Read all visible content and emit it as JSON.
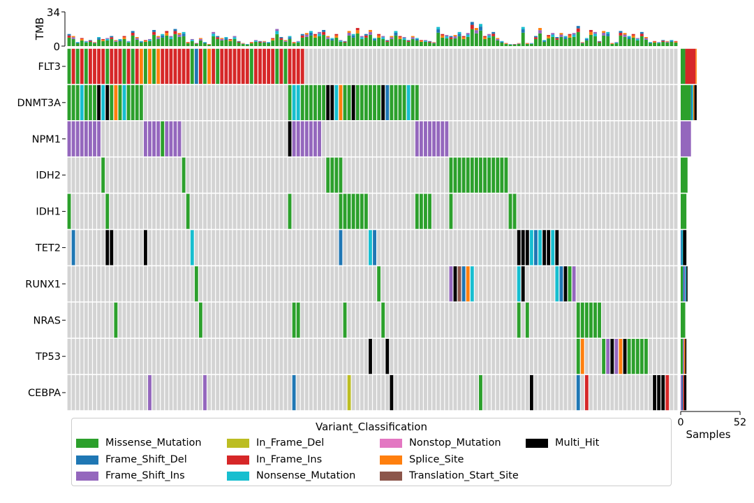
{
  "chart_data": {
    "type": "heatmap",
    "title": "",
    "genes": [
      "FLT3",
      "DNMT3A",
      "NPM1",
      "IDH2",
      "IDH1",
      "TET2",
      "RUNX1",
      "NRAS",
      "TP53",
      "CEBPA"
    ],
    "n_samples": 144,
    "tmb_axis": {
      "label": "TMB",
      "ticks": [
        "0",
        "34"
      ],
      "max": 34
    },
    "samples_axis": {
      "label": "Samples",
      "ticks": [
        "0",
        "52"
      ],
      "max": 52
    },
    "tmb": [
      12,
      10,
      4,
      8,
      5,
      6,
      4,
      9,
      7,
      8,
      10,
      6,
      7,
      10,
      5,
      15,
      9,
      5,
      6,
      7,
      16,
      10,
      12,
      15,
      10,
      17,
      13,
      14,
      4,
      7,
      3,
      8,
      4,
      2,
      14,
      10,
      8,
      9,
      7,
      10,
      5,
      3,
      2,
      4,
      6,
      5,
      5,
      4,
      8,
      17,
      9,
      6,
      10,
      4,
      5,
      12,
      13,
      15,
      12,
      14,
      16,
      10,
      8,
      12,
      6,
      5,
      15,
      12,
      18,
      10,
      12,
      16,
      8,
      12,
      10,
      6,
      10,
      15,
      10,
      9,
      6,
      10,
      8,
      6,
      6,
      5,
      4,
      19,
      12,
      11,
      10,
      11,
      14,
      10,
      13,
      24,
      18,
      22,
      10,
      12,
      14,
      8,
      5,
      3,
      2,
      2,
      3,
      19,
      3,
      3,
      10,
      18,
      6,
      11,
      13,
      9,
      13,
      10,
      12,
      13,
      20,
      4,
      8,
      16,
      14,
      5,
      15,
      14,
      3,
      4,
      15,
      13,
      10,
      12,
      8,
      14,
      9,
      4,
      5,
      4,
      6,
      5,
      6,
      5
    ],
    "tmb_colored": [
      [
        0,
        12
      ],
      [
        2,
        9
      ],
      [
        6,
        8
      ],
      [
        10,
        10
      ],
      [
        14,
        11
      ],
      [
        17,
        12
      ],
      [
        20,
        13
      ],
      [
        30,
        14
      ],
      [
        35,
        8
      ],
      [
        40,
        6
      ],
      [
        42,
        5
      ],
      [
        48,
        12
      ],
      [
        52,
        10
      ],
      [
        55,
        16
      ],
      [
        58,
        12
      ],
      [
        62,
        14
      ],
      [
        68,
        18
      ],
      [
        70,
        12
      ],
      [
        85,
        10
      ],
      [
        87,
        18
      ],
      [
        95,
        32
      ],
      [
        100,
        12
      ],
      [
        113,
        18
      ],
      [
        118,
        12
      ],
      [
        120,
        20
      ],
      [
        125,
        16
      ],
      [
        130,
        15
      ],
      [
        140,
        8
      ]
    ],
    "alterations_legend": [
      "Missense_Mutation",
      "Frame_Shift_Del",
      "Frame_Shift_Ins",
      "In_Frame_Del",
      "In_Frame_Ins",
      "Nonsense_Mutation",
      "Nonstop_Mutation",
      "Splice_Site",
      "Translation_Start_Site",
      "Multi_Hit"
    ],
    "colors": {
      "Missense_Mutation": "#2ca02c",
      "Frame_Shift_Del": "#1f77b4",
      "Frame_Shift_Ins": "#9467bd",
      "In_Frame_Del": "#bcbd22",
      "In_Frame_Ins": "#d62728",
      "Nonsense_Mutation": "#17becf",
      "Nonstop_Mutation": "#e377c2",
      "Splice_Site": "#ff7f0e",
      "Translation_Start_Site": "#8c564b",
      "Multi_Hit": "#000000",
      "none": "#d3d3d3"
    },
    "matrix": {
      "FLT3": [
        [
          "M",
          0,
          1
        ],
        [
          "I",
          1,
          1
        ],
        [
          "M",
          2,
          1
        ],
        [
          "I",
          3,
          1
        ],
        [
          "M",
          4,
          1
        ],
        [
          "I",
          5,
          4
        ],
        [
          "M",
          9,
          1
        ],
        [
          "I",
          10,
          3
        ],
        [
          "M",
          13,
          1
        ],
        [
          "I",
          14,
          1
        ],
        [
          "M",
          15,
          1
        ],
        [
          "I",
          16,
          1
        ],
        [
          "S",
          17,
          1
        ],
        [
          "M",
          18,
          1
        ],
        [
          "S",
          19,
          1
        ],
        [
          "M",
          20,
          1
        ],
        [
          "S",
          21,
          1
        ],
        [
          "I",
          22,
          7
        ],
        [
          "M",
          29,
          1
        ],
        [
          "D",
          30,
          1
        ],
        [
          "I",
          31,
          1
        ],
        [
          "M",
          32,
          1
        ],
        [
          "S",
          33,
          1
        ],
        [
          "I",
          34,
          1
        ],
        [
          "M",
          35,
          1
        ],
        [
          "I",
          36,
          7
        ],
        [
          "M",
          43,
          1
        ],
        [
          "I",
          44,
          5
        ],
        [
          "M",
          49,
          1
        ],
        [
          "I",
          50,
          1
        ],
        [
          "M",
          51,
          1
        ],
        [
          "I",
          52,
          4
        ]
      ],
      "DNMT3A": [
        [
          "M",
          0,
          3
        ],
        [
          "N",
          3,
          1
        ],
        [
          "M",
          4,
          3
        ],
        [
          "H",
          7,
          1
        ],
        [
          "N",
          8,
          1
        ],
        [
          "H",
          9,
          1
        ],
        [
          "M",
          10,
          1
        ],
        [
          "S",
          11,
          1
        ],
        [
          "M",
          12,
          1
        ],
        [
          "N",
          13,
          1
        ],
        [
          "M",
          14,
          4
        ],
        [
          "M",
          52,
          1
        ],
        [
          "N",
          53,
          1
        ],
        [
          "N",
          54,
          1
        ],
        [
          "M",
          55,
          6
        ],
        [
          "H",
          61,
          2
        ],
        [
          "N",
          63,
          1
        ],
        [
          "S",
          64,
          1
        ],
        [
          "M",
          65,
          2
        ],
        [
          "H",
          67,
          1
        ],
        [
          "M",
          68,
          6
        ],
        [
          "H",
          74,
          1
        ],
        [
          "D",
          75,
          1
        ],
        [
          "M",
          76,
          4
        ],
        [
          "N",
          80,
          1
        ],
        [
          "M",
          81,
          2
        ]
      ],
      "NPM1": [
        [
          "F",
          0,
          8
        ],
        [
          "F",
          18,
          4
        ],
        [
          "M",
          22,
          1
        ],
        [
          "F",
          23,
          4
        ],
        [
          "H",
          52,
          1
        ],
        [
          "F",
          53,
          7
        ],
        [
          "F",
          82,
          8
        ]
      ],
      "IDH2": [
        [
          "M",
          8,
          1
        ],
        [
          "M",
          27,
          1
        ],
        [
          "M",
          61,
          4
        ],
        [
          "M",
          90,
          14
        ]
      ],
      "IDH1": [
        [
          "M",
          0,
          1
        ],
        [
          "M",
          9,
          1
        ],
        [
          "M",
          28,
          1
        ],
        [
          "M",
          52,
          1
        ],
        [
          "M",
          64,
          7
        ],
        [
          "M",
          82,
          4
        ],
        [
          "M",
          90,
          1
        ],
        [
          "M",
          104,
          2
        ]
      ],
      "TET2": [
        [
          "D",
          1,
          1
        ],
        [
          "H",
          9,
          2
        ],
        [
          "H",
          18,
          1
        ],
        [
          "N",
          29,
          1
        ],
        [
          "D",
          64,
          1
        ],
        [
          "N",
          71,
          1
        ],
        [
          "D",
          72,
          1
        ],
        [
          "H",
          106,
          3
        ],
        [
          "N",
          109,
          1
        ],
        [
          "D",
          110,
          1
        ],
        [
          "N",
          111,
          1
        ],
        [
          "H",
          112,
          2
        ],
        [
          "N",
          114,
          1
        ],
        [
          "H",
          115,
          1
        ]
      ],
      "RUNX1": [
        [
          "M",
          30,
          1
        ],
        [
          "M",
          73,
          1
        ],
        [
          "F",
          90,
          1
        ],
        [
          "H",
          91,
          1
        ],
        [
          "T",
          92,
          1
        ],
        [
          "D",
          93,
          1
        ],
        [
          "S",
          94,
          1
        ],
        [
          "N",
          95,
          1
        ],
        [
          "N",
          106,
          1
        ],
        [
          "H",
          107,
          1
        ],
        [
          "N",
          115,
          1
        ],
        [
          "D",
          116,
          1
        ],
        [
          "H",
          117,
          1
        ],
        [
          "M",
          118,
          1
        ],
        [
          "F",
          119,
          1
        ]
      ],
      "NRAS": [
        [
          "M",
          11,
          1
        ],
        [
          "M",
          31,
          1
        ],
        [
          "M",
          53,
          2
        ],
        [
          "M",
          65,
          1
        ],
        [
          "M",
          74,
          1
        ],
        [
          "M",
          106,
          1
        ],
        [
          "M",
          108,
          1
        ],
        [
          "M",
          120,
          6
        ]
      ],
      "TP53": [
        [
          "H",
          71,
          1
        ],
        [
          "H",
          75,
          1
        ],
        [
          "M",
          120,
          1
        ],
        [
          "S",
          121,
          1
        ],
        [
          "M",
          126,
          1
        ],
        [
          "F",
          127,
          1
        ],
        [
          "H",
          128,
          1
        ],
        [
          "F",
          129,
          1
        ],
        [
          "S",
          130,
          1
        ],
        [
          "H",
          131,
          1
        ],
        [
          "M",
          132,
          5
        ]
      ],
      "CEBPA": [
        [
          "F",
          19,
          1
        ],
        [
          "F",
          32,
          1
        ],
        [
          "D",
          53,
          1
        ],
        [
          "Y",
          66,
          1
        ],
        [
          "H",
          76,
          1
        ],
        [
          "M",
          97,
          1
        ],
        [
          "H",
          109,
          1
        ],
        [
          "D",
          120,
          1
        ],
        [
          "I",
          122,
          1
        ],
        [
          "H",
          138,
          3
        ],
        [
          "I",
          141,
          1
        ]
      ]
    },
    "sample_counts": {
      "FLT3": [
        [
          "M",
          4
        ],
        [
          "I",
          9
        ],
        [
          "S",
          1
        ]
      ],
      "DNMT3A": [
        [
          "M",
          9
        ],
        [
          "D",
          1
        ],
        [
          "N",
          1
        ],
        [
          "S",
          1
        ],
        [
          "H",
          2
        ]
      ],
      "NPM1": [
        [
          "F",
          9
        ]
      ],
      "IDH2": [
        [
          "M",
          6
        ]
      ],
      "IDH1": [
        [
          "M",
          5
        ]
      ],
      "TET2": [
        [
          "D",
          1
        ],
        [
          "N",
          1
        ],
        [
          "H",
          3
        ]
      ],
      "RUNX1": [
        [
          "M",
          2
        ],
        [
          "D",
          1
        ],
        [
          "F",
          1
        ],
        [
          "N",
          1
        ],
        [
          "H",
          1
        ]
      ],
      "NRAS": [
        [
          "M",
          4
        ]
      ],
      "TP53": [
        [
          "M",
          2
        ],
        [
          "F",
          1
        ],
        [
          "S",
          1
        ],
        [
          "H",
          1
        ]
      ],
      "CEBPA": [
        [
          "F",
          1
        ],
        [
          "D",
          1
        ],
        [
          "I",
          1
        ],
        [
          "H",
          2
        ]
      ]
    },
    "code_map": {
      "M": "Missense_Mutation",
      "D": "Frame_Shift_Del",
      "F": "Frame_Shift_Ins",
      "Y": "In_Frame_Del",
      "I": "In_Frame_Ins",
      "N": "Nonsense_Mutation",
      "O": "Nonstop_Mutation",
      "S": "Splice_Site",
      "T": "Translation_Start_Site",
      "H": "Multi_Hit"
    }
  },
  "legend": {
    "title": "Variant_Classification",
    "items": [
      "Missense_Mutation",
      "Frame_Shift_Del",
      "Frame_Shift_Ins",
      "In_Frame_Del",
      "In_Frame_Ins",
      "Nonsense_Mutation",
      "Nonstop_Mutation",
      "Splice_Site",
      "Translation_Start_Site",
      "Multi_Hit"
    ]
  }
}
